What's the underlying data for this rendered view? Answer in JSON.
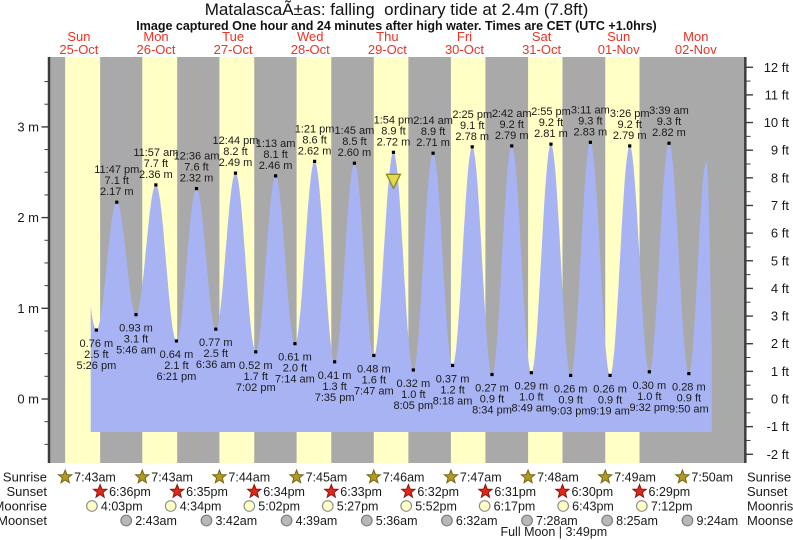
{
  "title": "MatalascaÃ±as: falling  ordinary tide at 2.4m (7.8ft)",
  "subtitle": "Image captured One hour and 24 minutes after high water. Times are CET (UTC +1.0hrs)",
  "colors": {
    "day_band": "#ffffc6",
    "night_band": "#a9a9a9",
    "tide_fill": "#a8b3f3",
    "date_red": "#ee3224",
    "text": "#1a1a1a",
    "axis": "#3c3c3c",
    "sunrise_star": "#b39a20",
    "sunrise_star_edge": "#756414",
    "sunset_star": "#e02818",
    "sunset_star_edge": "#8c1410",
    "moonrise_fill": "#ffffc6",
    "moonrise_edge": "#8f8f8f",
    "moonset_fill": "#b8b8b8",
    "moonset_edge": "#7d7d7d",
    "capture_fill": "#dedb4e",
    "capture_edge": "#8a8a1e"
  },
  "chart_data": {
    "type": "area",
    "title": "MatalascaÃ±as: falling  ordinary tide at 2.4m (7.8ft)",
    "x_days": [
      {
        "name": "Sun",
        "date": "25-Oct"
      },
      {
        "name": "Mon",
        "date": "26-Oct"
      },
      {
        "name": "Tue",
        "date": "27-Oct"
      },
      {
        "name": "Wed",
        "date": "28-Oct"
      },
      {
        "name": "Thu",
        "date": "29-Oct"
      },
      {
        "name": "Fri",
        "date": "30-Oct"
      },
      {
        "name": "Sat",
        "date": "31-Oct"
      },
      {
        "name": "Sun",
        "date": "01-Nov"
      },
      {
        "name": "Mon",
        "date": "02-Nov"
      }
    ],
    "y_left": {
      "unit": "m",
      "values": [
        0,
        1,
        2,
        3
      ],
      "labels": [
        "0 m",
        "1 m",
        "2 m",
        "3 m"
      ]
    },
    "y_right": {
      "unit": "ft",
      "values": [
        -2,
        -1,
        0,
        1,
        2,
        3,
        4,
        5,
        6,
        7,
        8,
        9,
        10,
        11,
        12
      ],
      "labels": [
        "-2 ft",
        "-1 ft",
        "0 ft",
        "1 ft",
        "2 ft",
        "3 ft",
        "4 ft",
        "5 ft",
        "6 ft",
        "7 ft",
        "8 ft",
        "9 ft",
        "10 ft",
        "11 ft",
        "12 ft"
      ]
    },
    "tide_events": [
      {
        "kind": "low",
        "day": 0,
        "time": "5:26 pm",
        "m": 0.76,
        "ft": "2.5"
      },
      {
        "kind": "high",
        "day": 0,
        "time": "11:47 pm",
        "m": 2.17,
        "ft": "7.1"
      },
      {
        "kind": "low",
        "day": 1,
        "time": "5:46 am",
        "m": 0.93,
        "ft": "3.1"
      },
      {
        "kind": "high",
        "day": 1,
        "time": "11:57 am",
        "m": 2.36,
        "ft": "7.7"
      },
      {
        "kind": "low",
        "day": 1,
        "time": "6:21 pm",
        "m": 0.64,
        "ft": "2.1"
      },
      {
        "kind": "high",
        "day": 2,
        "time": "12:36 am",
        "m": 2.32,
        "ft": "7.6"
      },
      {
        "kind": "low",
        "day": 2,
        "time": "6:36 am",
        "m": 0.77,
        "ft": "2.5"
      },
      {
        "kind": "high",
        "day": 2,
        "time": "12:44 pm",
        "m": 2.49,
        "ft": "8.2"
      },
      {
        "kind": "low",
        "day": 2,
        "time": "7:02 pm",
        "m": 0.52,
        "ft": "1.7"
      },
      {
        "kind": "high",
        "day": 3,
        "time": "1:13 am",
        "m": 2.46,
        "ft": "8.1"
      },
      {
        "kind": "low",
        "day": 3,
        "time": "7:14 am",
        "m": 0.61,
        "ft": "2.0"
      },
      {
        "kind": "high",
        "day": 3,
        "time": "1:21 pm",
        "m": 2.62,
        "ft": "8.6"
      },
      {
        "kind": "low",
        "day": 3,
        "time": "7:35 pm",
        "m": 0.41,
        "ft": "1.3"
      },
      {
        "kind": "high",
        "day": 4,
        "time": "1:45 am",
        "m": 2.6,
        "ft": "8.5"
      },
      {
        "kind": "low",
        "day": 4,
        "time": "7:47 am",
        "m": 0.48,
        "ft": "1.6"
      },
      {
        "kind": "high",
        "day": 4,
        "time": "1:54 pm",
        "m": 2.72,
        "ft": "8.9",
        "capture": true
      },
      {
        "kind": "low",
        "day": 4,
        "time": "8:05 pm",
        "m": 0.32,
        "ft": "1.0"
      },
      {
        "kind": "high",
        "day": 5,
        "time": "2:14 am",
        "m": 2.71,
        "ft": "8.9"
      },
      {
        "kind": "low",
        "day": 5,
        "time": "8:18 am",
        "m": 0.37,
        "ft": "1.2"
      },
      {
        "kind": "high",
        "day": 5,
        "time": "2:25 pm",
        "m": 2.78,
        "ft": "9.1"
      },
      {
        "kind": "low",
        "day": 5,
        "time": "8:34 pm",
        "m": 0.27,
        "ft": "0.9"
      },
      {
        "kind": "high",
        "day": 6,
        "time": "2:42 am",
        "m": 2.79,
        "ft": "9.2"
      },
      {
        "kind": "low",
        "day": 6,
        "time": "8:49 am",
        "m": 0.29,
        "ft": "1.0"
      },
      {
        "kind": "high",
        "day": 6,
        "time": "2:55 pm",
        "m": 2.81,
        "ft": "9.2"
      },
      {
        "kind": "low",
        "day": 6,
        "time": "9:03 pm",
        "m": 0.26,
        "ft": "0.9"
      },
      {
        "kind": "high",
        "day": 7,
        "time": "3:11 am",
        "m": 2.83,
        "ft": "9.3"
      },
      {
        "kind": "low",
        "day": 7,
        "time": "9:19 am",
        "m": 0.26,
        "ft": "0.9"
      },
      {
        "kind": "high",
        "day": 7,
        "time": "3:26 pm",
        "m": 2.79,
        "ft": "9.2"
      },
      {
        "kind": "low",
        "day": 7,
        "time": "9:32 pm",
        "m": 0.3,
        "ft": "1.0"
      },
      {
        "kind": "high",
        "day": 8,
        "time": "3:39 am",
        "m": 2.82,
        "ft": "9.3"
      },
      {
        "kind": "low",
        "day": 8,
        "time": "9:50 am",
        "m": 0.28,
        "ft": "0.9"
      }
    ],
    "curve_edge_anchors": [
      {
        "pos": "start",
        "day": 0,
        "hour": 11.4,
        "m": 2.1
      },
      {
        "pos": "end",
        "day": 8,
        "hour": 15.3,
        "m": 2.62
      },
      {
        "pos": "end",
        "day": 8,
        "hour": 18.0,
        "m": -0.4
      }
    ],
    "sun_moon": {
      "rows": [
        {
          "id": "sunrise",
          "label": "Sunrise",
          "times": [
            "7:43am",
            "7:43am",
            "7:44am",
            "7:45am",
            "7:46am",
            "7:47am",
            "7:48am",
            "7:49am",
            "7:50am"
          ]
        },
        {
          "id": "sunset",
          "label": "Sunset",
          "times": [
            "6:36pm",
            "6:35pm",
            "6:34pm",
            "6:33pm",
            "6:32pm",
            "6:31pm",
            "6:30pm",
            "6:29pm"
          ]
        },
        {
          "id": "moonrise",
          "label": "Moonrise",
          "times": [
            "4:03pm",
            "4:34pm",
            "5:02pm",
            "5:27pm",
            "5:52pm",
            "6:17pm",
            "6:43pm",
            "7:12pm"
          ]
        },
        {
          "id": "moonset",
          "label": "Moonset",
          "times": [
            "2:43am",
            "3:42am",
            "4:39am",
            "5:36am",
            "6:32am",
            "7:28am",
            "8:25am",
            "9:24am"
          ]
        }
      ],
      "moon_phase": {
        "text": "Full Moon | 3:49pm",
        "day": 6,
        "time": "3:49pm"
      }
    }
  }
}
